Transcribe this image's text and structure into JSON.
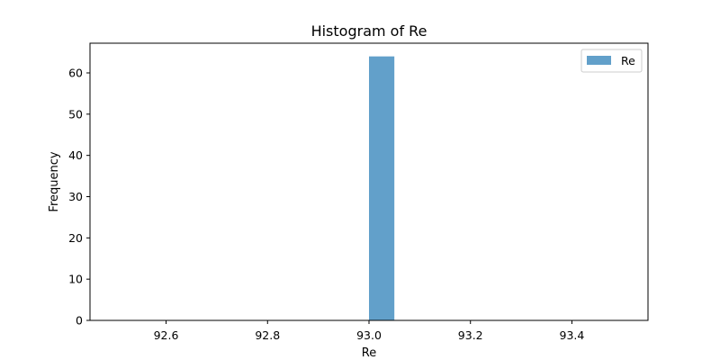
{
  "chart_data": {
    "type": "bar",
    "title": "Histogram of Re",
    "xlabel": "Re",
    "ylabel": "Frequency",
    "xlim": [
      92.45,
      93.55
    ],
    "ylim": [
      0,
      67.2
    ],
    "xticks": [
      92.6,
      92.8,
      93.0,
      93.2,
      93.4
    ],
    "xtick_labels": [
      "92.6",
      "92.8",
      "93.0",
      "93.2",
      "93.4"
    ],
    "yticks": [
      0,
      10,
      20,
      30,
      40,
      50,
      60
    ],
    "ytick_labels": [
      "0",
      "10",
      "20",
      "30",
      "40",
      "50",
      "60"
    ],
    "grid": false,
    "legend": {
      "placement": "top-right",
      "entries": [
        "Re"
      ]
    },
    "series": [
      {
        "name": "Re",
        "color": "#1f77b4",
        "opacity": 0.7,
        "bins": [
          {
            "x0": 93.0,
            "x1": 93.05,
            "value": 64
          }
        ]
      }
    ]
  }
}
